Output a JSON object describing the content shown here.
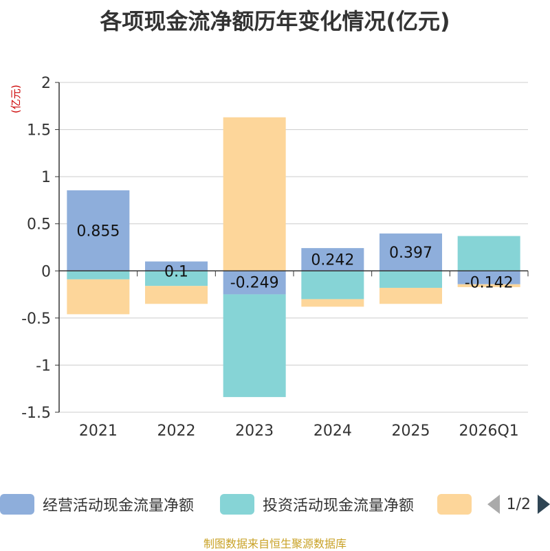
{
  "chart_data": {
    "type": "bar",
    "stacked": true,
    "title": "各项现金流净额历年变化情况(亿元)",
    "ylabel": "(亿元)",
    "categories": [
      "2021",
      "2022",
      "2023",
      "2024",
      "2025",
      "2026Q1"
    ],
    "ylim": [
      -1.5,
      2
    ],
    "yticks": [
      -1.5,
      -1,
      -0.5,
      0,
      0.5,
      1,
      1.5,
      2
    ],
    "ytick_labels": [
      "-1.5",
      "-1",
      "-0.5",
      "0",
      "0.5",
      "1",
      "1.5",
      "2"
    ],
    "series": [
      {
        "name": "经营活动现金流量净额",
        "color": "#8eaedb",
        "values": [
          0.855,
          0.1,
          -0.249,
          0.242,
          0.397,
          -0.142
        ],
        "labels": [
          "0.855",
          "0.1",
          "-0.249",
          "0.242",
          "0.397",
          "-0.142"
        ]
      },
      {
        "name": "投资活动现金流量净额",
        "color": "#86d4d6",
        "values": [
          -0.09,
          -0.16,
          -1.09,
          -0.3,
          -0.18,
          0.37
        ]
      },
      {
        "name": "",
        "color": "#fdd69a",
        "values": [
          -0.37,
          -0.19,
          1.63,
          -0.08,
          -0.17,
          -0.03
        ]
      }
    ],
    "legend": {
      "position": "bottom",
      "page": "1/2"
    }
  },
  "source": "制图数据来自恒生聚源数据库"
}
